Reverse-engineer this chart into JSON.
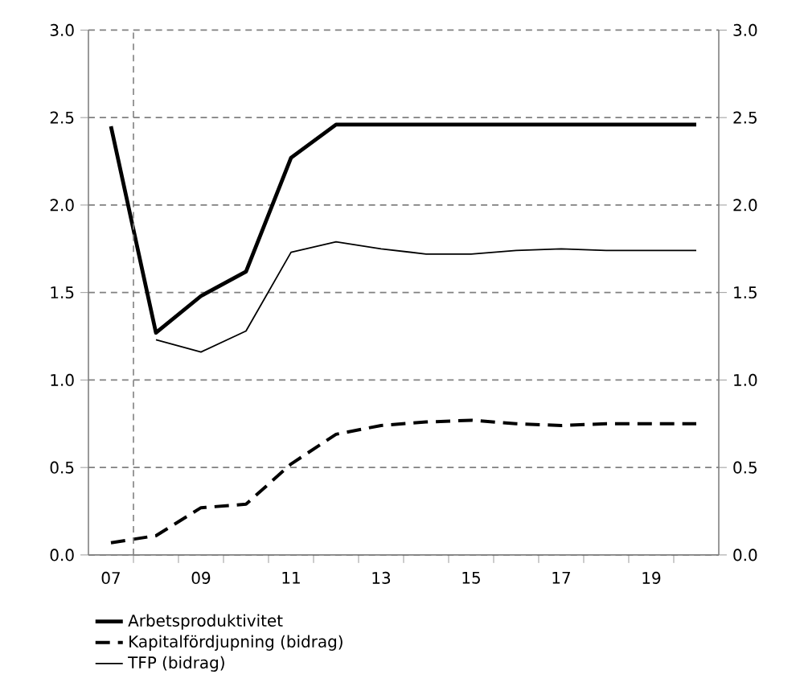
{
  "chart_data": {
    "type": "line",
    "x": [
      2007,
      2008,
      2009,
      2010,
      2011,
      2012,
      2013,
      2014,
      2015,
      2016,
      2017,
      2018,
      2019,
      2020
    ],
    "series": [
      {
        "name": "Arbetsproduktivitet",
        "color": "#000000",
        "line_style": "solid",
        "values": [
          2.45,
          1.27,
          1.48,
          1.62,
          2.27,
          2.46,
          2.46,
          2.46,
          2.46,
          2.46,
          2.46,
          2.46,
          2.46,
          2.46
        ]
      },
      {
        "name": "Kapitalfördjupning (bidrag)",
        "color": "#000000",
        "line_style": "dashed",
        "values": [
          0.07,
          0.11,
          0.27,
          0.29,
          0.52,
          0.69,
          0.74,
          0.76,
          0.77,
          0.75,
          0.74,
          0.75,
          0.75,
          0.75
        ]
      },
      {
        "name": "TFP (bidrag)",
        "color": "#000000",
        "line_style": "solid",
        "values": [
          null,
          1.23,
          1.16,
          1.28,
          1.73,
          1.79,
          1.75,
          1.72,
          1.72,
          1.74,
          1.75,
          1.74,
          1.74,
          1.74
        ]
      }
    ],
    "xlim": [
      2006.5,
      2020.5
    ],
    "xticks": [
      {
        "value": 2007,
        "label": "07"
      },
      {
        "value": 2009,
        "label": "09"
      },
      {
        "value": 2011,
        "label": "11"
      },
      {
        "value": 2013,
        "label": "13"
      },
      {
        "value": 2015,
        "label": "15"
      },
      {
        "value": 2017,
        "label": "17"
      },
      {
        "value": 2019,
        "label": "19"
      },
      {
        "value": 2007.5,
        "label": null
      },
      {
        "value": 2008.5,
        "label": null
      },
      {
        "value": 2009.5,
        "label": null
      },
      {
        "value": 2010.5,
        "label": null
      },
      {
        "value": 2011.5,
        "label": null
      },
      {
        "value": 2012.5,
        "label": null
      },
      {
        "value": 2013.5,
        "label": null
      },
      {
        "value": 2014.5,
        "label": null
      },
      {
        "value": 2015.5,
        "label": null
      },
      {
        "value": 2016.5,
        "label": null
      },
      {
        "value": 2017.5,
        "label": null
      },
      {
        "value": 2018.5,
        "label": null
      },
      {
        "value": 2019.5,
        "label": null
      }
    ],
    "ylim": [
      0,
      3
    ],
    "yticks": [
      {
        "value": 0,
        "label": "0.0"
      },
      {
        "value": 0.5,
        "label": "0.5"
      },
      {
        "value": 1,
        "label": "1.0"
      },
      {
        "value": 1.5,
        "label": "1.5"
      },
      {
        "value": 2,
        "label": "2.0"
      },
      {
        "value": 2.5,
        "label": "2.5"
      },
      {
        "value": 3,
        "label": "3.0"
      }
    ],
    "y2lim": [
      0,
      3
    ],
    "y2ticks": [
      {
        "value": 0,
        "label": "0.0"
      },
      {
        "value": 0.5,
        "label": "0.5"
      },
      {
        "value": 1,
        "label": "1.0"
      },
      {
        "value": 1.5,
        "label": "1.5"
      },
      {
        "value": 2,
        "label": "2.0"
      },
      {
        "value": 2.5,
        "label": "2.5"
      },
      {
        "value": 3,
        "label": "3.0"
      }
    ],
    "ref_lines": [
      {
        "axis": "x",
        "value": 2007.5,
        "color": "#808080",
        "line_style": "dashed"
      }
    ],
    "grid": "y",
    "legend": "bottom",
    "marker": "none"
  }
}
